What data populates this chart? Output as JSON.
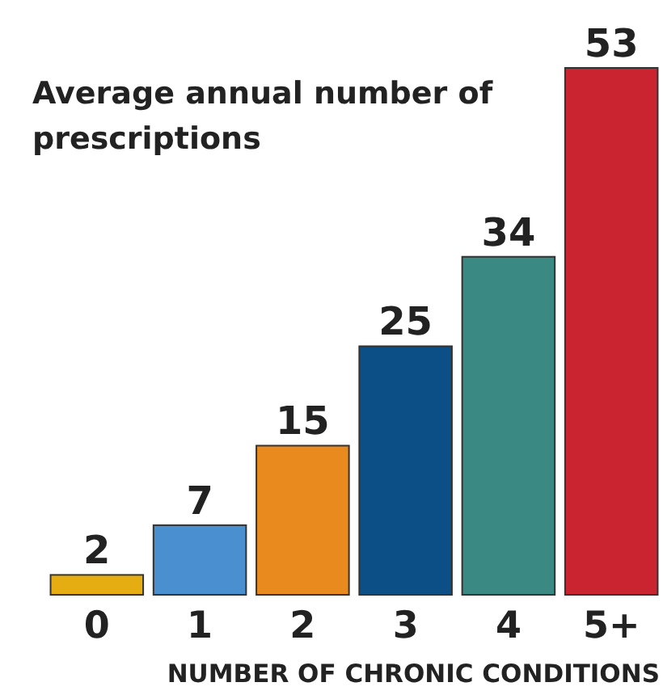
{
  "chart_data": {
    "type": "bar",
    "title": "Average annual number of prescriptions",
    "xlabel": "NUMBER OF CHRONIC CONDITIONS",
    "categories": [
      "0",
      "1",
      "2",
      "3",
      "4",
      "5+"
    ],
    "values": [
      2,
      7,
      15,
      25,
      34,
      53
    ],
    "colors": [
      "#e6ad12",
      "#4a8fd0",
      "#e88a1e",
      "#0b4f86",
      "#3a8982",
      "#c9242f"
    ],
    "data_labels": true
  }
}
